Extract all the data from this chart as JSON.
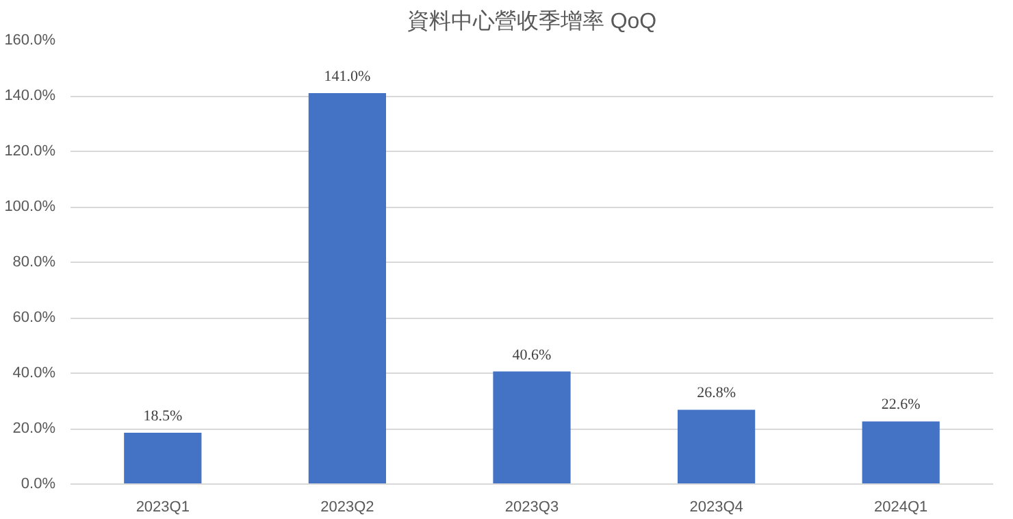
{
  "chart_data": {
    "type": "bar",
    "title": "資料中心營收季增率 QoQ",
    "categories": [
      "2023Q1",
      "2023Q2",
      "2023Q3",
      "2023Q4",
      "2024Q1"
    ],
    "values": [
      18.5,
      141.0,
      40.6,
      26.8,
      22.6
    ],
    "value_labels": [
      "18.5%",
      "141.0%",
      "40.6%",
      "26.8%",
      "22.6%"
    ],
    "color": "#4472c4",
    "ylim": [
      0,
      160
    ],
    "yticks": [
      {
        "value": 0,
        "label": "0.0%"
      },
      {
        "value": 20,
        "label": "20.0%"
      },
      {
        "value": 40,
        "label": "40.0%"
      },
      {
        "value": 60,
        "label": "60.0%"
      },
      {
        "value": 80,
        "label": "80.0%"
      },
      {
        "value": 100,
        "label": "100.0%"
      },
      {
        "value": 120,
        "label": "120.0%"
      },
      {
        "value": 140,
        "label": "140.0%"
      },
      {
        "value": 160,
        "label": "160.0%"
      }
    ],
    "grid": "y"
  }
}
